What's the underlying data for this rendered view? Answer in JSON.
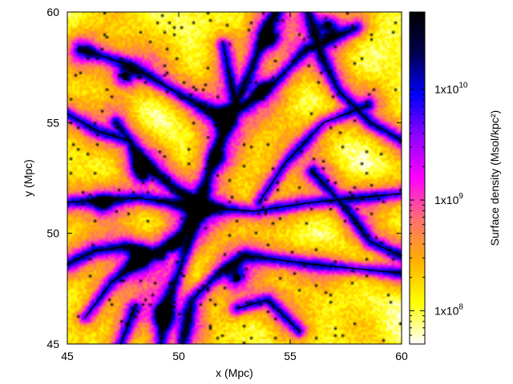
{
  "chart_data": {
    "type": "heatmap",
    "title": "",
    "xlabel": "x (Mpc)",
    "ylabel": "y (Mpc)",
    "xlim": [
      45,
      60
    ],
    "ylim": [
      45,
      60
    ],
    "x_ticks": [
      "45",
      "50",
      "55",
      "60"
    ],
    "y_ticks": [
      "45",
      "50",
      "55",
      "60"
    ],
    "x_tick_values": [
      45,
      50,
      55,
      60
    ],
    "y_tick_values": [
      45,
      50,
      55,
      60
    ],
    "colorbar": {
      "label": "Surface density (Msol/kpc²)",
      "scale": "log",
      "range": [
        50000000,
        50000000000
      ],
      "ticks": [
        {
          "value": 100000000,
          "base": "1x10",
          "exp": "8"
        },
        {
          "value": 1000000000,
          "base": "1x10",
          "exp": "9"
        },
        {
          "value": 10000000000,
          "base": "1x10",
          "exp": "10"
        }
      ],
      "palette": [
        "#ffffff",
        "#ffff00",
        "#ffb000",
        "#ff7070",
        "#ff00ff",
        "#9000ff",
        "#0000ff",
        "#000050",
        "#000000"
      ]
    },
    "structures": {
      "filaments": [
        [
          [
            46.0,
            58.2
          ],
          [
            47.8,
            57.6
          ],
          [
            50.0,
            56.3
          ],
          [
            51.8,
            55.3
          ],
          [
            53.0,
            55.8
          ],
          [
            54.5,
            57.0
          ],
          [
            55.7,
            58.3
          ],
          [
            58.0,
            59.3
          ]
        ],
        [
          [
            49.2,
            45.0
          ],
          [
            49.4,
            46.6
          ],
          [
            50.2,
            48.8
          ],
          [
            50.9,
            51.2
          ],
          [
            51.6,
            53.5
          ],
          [
            52.3,
            55.3
          ],
          [
            53.3,
            57.5
          ],
          [
            54.0,
            59.4
          ],
          [
            54.4,
            60.0
          ]
        ],
        [
          [
            45.0,
            51.4
          ],
          [
            46.6,
            51.5
          ],
          [
            48.2,
            51.6
          ],
          [
            50.9,
            51.2
          ],
          [
            53.4,
            51.0
          ],
          [
            56.0,
            51.4
          ],
          [
            60.0,
            51.8
          ]
        ],
        [
          [
            45.8,
            46.2
          ],
          [
            47.0,
            47.8
          ],
          [
            48.2,
            48.8
          ],
          [
            50.0,
            49.6
          ],
          [
            50.9,
            51.2
          ]
        ],
        [
          [
            47.2,
            55.0
          ],
          [
            48.6,
            53.0
          ],
          [
            50.9,
            51.2
          ]
        ],
        [
          [
            52.0,
            58.5
          ],
          [
            52.3,
            57.0
          ],
          [
            52.6,
            55.9
          ]
        ],
        [
          [
            50.2,
            45.0
          ],
          [
            50.6,
            47.0
          ],
          [
            51.8,
            48.2
          ],
          [
            53.0,
            49.0
          ],
          [
            56.0,
            48.6
          ],
          [
            60.0,
            48.2
          ]
        ],
        [
          [
            55.8,
            60.0
          ],
          [
            56.4,
            58.0
          ],
          [
            57.2,
            56.4
          ],
          [
            58.6,
            55.0
          ],
          [
            60.0,
            54.2
          ]
        ],
        [
          [
            53.6,
            51.4
          ],
          [
            54.8,
            53.2
          ],
          [
            56.5,
            55.0
          ],
          [
            58.5,
            55.8
          ]
        ],
        [
          [
            45.0,
            55.4
          ],
          [
            46.4,
            54.6
          ],
          [
            47.8,
            54.2
          ],
          [
            48.4,
            52.6
          ]
        ],
        [
          [
            45.0,
            48.6
          ],
          [
            46.2,
            49.2
          ],
          [
            47.6,
            49.4
          ],
          [
            49.2,
            49.0
          ]
        ],
        [
          [
            52.6,
            46.6
          ],
          [
            54.0,
            47.0
          ],
          [
            55.4,
            45.6
          ]
        ],
        [
          [
            56.0,
            52.8
          ],
          [
            57.6,
            51.0
          ],
          [
            58.6,
            49.6
          ],
          [
            60.0,
            49.0
          ]
        ],
        [
          [
            48.0,
            46.6
          ],
          [
            47.4,
            45.0
          ]
        ]
      ],
      "halos": [
        {
          "x": 50.9,
          "y": 51.2,
          "strength": 1.0
        },
        {
          "x": 52.1,
          "y": 55.2,
          "strength": 0.85
        },
        {
          "x": 49.3,
          "y": 46.3,
          "strength": 0.85
        },
        {
          "x": 48.2,
          "y": 48.8,
          "strength": 0.7
        },
        {
          "x": 47.6,
          "y": 57.1,
          "strength": 0.6
        },
        {
          "x": 54.1,
          "y": 58.8,
          "strength": 0.7
        },
        {
          "x": 46.6,
          "y": 51.3,
          "strength": 0.5
        },
        {
          "x": 52.6,
          "y": 48.0,
          "strength": 0.55
        },
        {
          "x": 56.7,
          "y": 59.4,
          "strength": 0.6
        },
        {
          "x": 53.7,
          "y": 56.5,
          "strength": 0.5
        },
        {
          "x": 48.3,
          "y": 53.0,
          "strength": 0.5
        },
        {
          "x": 45.6,
          "y": 58.3,
          "strength": 0.45
        },
        {
          "x": 51.7,
          "y": 53.4,
          "strength": 0.55
        },
        {
          "x": 49.8,
          "y": 49.6,
          "strength": 0.5
        }
      ]
    }
  }
}
